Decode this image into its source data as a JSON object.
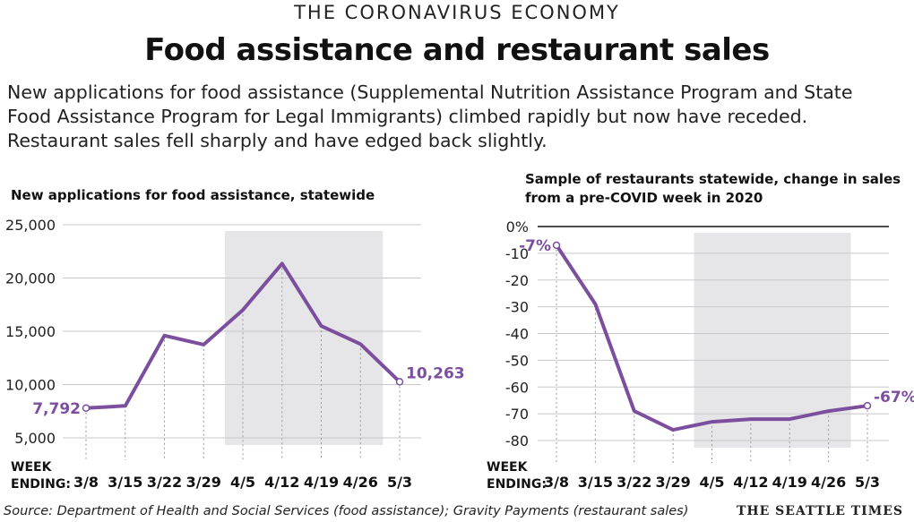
{
  "header": {
    "kicker": "THE CORONAVIRUS ECONOMY",
    "title": "Food assistance and restaurant sales",
    "intro_lines": [
      "New applications for food assistance (Supplemental Nutrition Assistance Program and State",
      "Food Assistance Program for Legal Immigrants) climbed rapidly but now have receded.",
      "Restaurant sales fell sharply and have edged back slightly."
    ]
  },
  "footer": {
    "source": "Source: Department of Health and Social Services (food assistance); Gravity Payments (restaurant sales)",
    "credit": "THE SEATTLE TIMES"
  },
  "colors": {
    "line": "#7b4f9e",
    "shade": "#e6e6e9",
    "grid": "#c8c8c8",
    "axis": "#333333"
  },
  "chart_data": [
    {
      "type": "line",
      "title_lines": [
        "New applications for food assistance, statewide"
      ],
      "xlabel_lines": [
        "WEEK",
        "ENDING:"
      ],
      "categories": [
        "3/8",
        "3/15",
        "3/22",
        "3/29",
        "4/5",
        "4/12",
        "4/19",
        "4/26",
        "5/3"
      ],
      "values": [
        7792,
        8000,
        14600,
        13750,
        17000,
        21350,
        15500,
        13800,
        10263
      ],
      "ylim": [
        5000,
        25000
      ],
      "yticks": [
        5000,
        10000,
        15000,
        20000,
        25000
      ],
      "ytick_labels": [
        "5,000",
        "10,000",
        "15,000",
        "20,000",
        "25,000"
      ],
      "shaded_range": [
        "4/5",
        "4/26"
      ],
      "annotations": [
        {
          "category": "3/8",
          "value": 7792,
          "label": "7,792",
          "side": "left"
        },
        {
          "category": "5/3",
          "value": 10263,
          "label": "10,263",
          "side": "right"
        }
      ]
    },
    {
      "type": "line",
      "title_lines": [
        "Sample of restaurants statewide, change in sales",
        "from a pre-COVID week in 2020"
      ],
      "xlabel_lines": [
        "WEEK",
        "ENDING:"
      ],
      "categories": [
        "3/8",
        "3/15",
        "3/22",
        "3/29",
        "4/5",
        "4/12",
        "4/19",
        "4/26",
        "5/3"
      ],
      "values": [
        -7,
        -29,
        -69,
        -76,
        -73,
        -72,
        -72,
        -69,
        -67
      ],
      "ylim": [
        -80,
        0
      ],
      "yticks": [
        0,
        -10,
        -20,
        -30,
        -40,
        -50,
        -60,
        -70,
        -80
      ],
      "ytick_labels": [
        "0%",
        "-10",
        "-20",
        "-30",
        "-40",
        "-50",
        "-60",
        "-70",
        "-80"
      ],
      "shaded_range": [
        "4/5",
        "4/26"
      ],
      "annotations": [
        {
          "category": "3/8",
          "value": -7,
          "label": "-7%",
          "side": "left"
        },
        {
          "category": "5/3",
          "value": -67,
          "label": "-67%",
          "side": "right"
        }
      ]
    }
  ]
}
